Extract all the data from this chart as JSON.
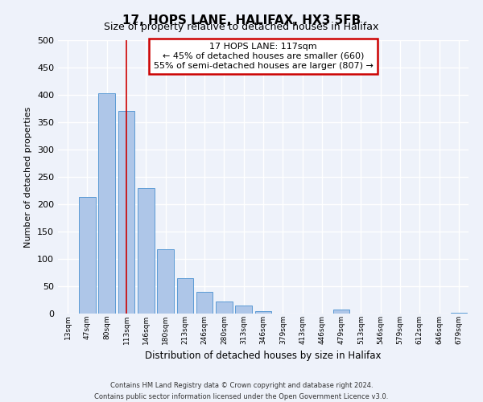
{
  "title": "17, HOPS LANE, HALIFAX, HX3 5FB",
  "subtitle": "Size of property relative to detached houses in Halifax",
  "xlabel": "Distribution of detached houses by size in Halifax",
  "ylabel": "Number of detached properties",
  "categories": [
    "13sqm",
    "47sqm",
    "80sqm",
    "113sqm",
    "146sqm",
    "180sqm",
    "213sqm",
    "246sqm",
    "280sqm",
    "313sqm",
    "346sqm",
    "379sqm",
    "413sqm",
    "446sqm",
    "479sqm",
    "513sqm",
    "546sqm",
    "579sqm",
    "612sqm",
    "646sqm",
    "679sqm"
  ],
  "values": [
    0,
    213,
    403,
    370,
    230,
    118,
    65,
    40,
    22,
    14,
    5,
    0,
    0,
    0,
    8,
    0,
    0,
    0,
    0,
    0,
    2
  ],
  "bar_color": "#aec6e8",
  "bar_edge_color": "#5b9bd5",
  "annotation_box_color": "#ffffff",
  "annotation_border_color": "#cc0000",
  "annotation_line1": "17 HOPS LANE: 117sqm",
  "annotation_line2": "← 45% of detached houses are smaller (660)",
  "annotation_line3": "55% of semi-detached houses are larger (807) →",
  "marker_bar_index": 3,
  "ylim": [
    0,
    500
  ],
  "yticks": [
    0,
    50,
    100,
    150,
    200,
    250,
    300,
    350,
    400,
    450,
    500
  ],
  "footer_line1": "Contains HM Land Registry data © Crown copyright and database right 2024.",
  "footer_line2": "Contains public sector information licensed under the Open Government Licence v3.0.",
  "background_color": "#eef2fa",
  "plot_background_color": "#eef2fa",
  "grid_color": "#ffffff"
}
